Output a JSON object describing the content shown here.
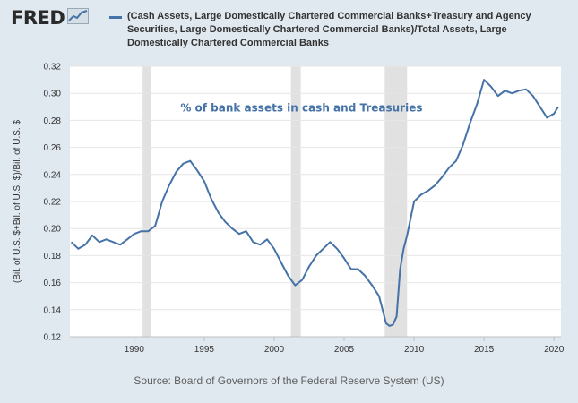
{
  "header": {
    "logo_text": "FRED",
    "legend_label": "(Cash Assets, Large Domestically Chartered Commercial Banks+Treasury and Agency Securities, Large Domestically Chartered Commercial Banks)/Total Assets, Large Domestically Chartered Commercial Banks"
  },
  "source": "Source: Board of Governors of the Federal Reserve System (US)",
  "colors": {
    "background": "#e1e9f0",
    "plot_background": "#ffffff",
    "line": "#4572a7",
    "recession": "#e1e1e1"
  },
  "chart_data": {
    "type": "line",
    "ylabel": "(Bil. of U.S. $+Bil. of U.S. $)/Bil. of U.S. $",
    "annotation": "% of bank assets in cash and Treasuries",
    "xlim": [
      1985.4,
      2020.5
    ],
    "ylim": [
      0.12,
      0.32
    ],
    "y_ticks": [
      "0.12",
      "0.14",
      "0.16",
      "0.18",
      "0.20",
      "0.22",
      "0.24",
      "0.26",
      "0.28",
      "0.30",
      "0.32"
    ],
    "x_ticks": [
      "1990",
      "1995",
      "2000",
      "2005",
      "2010",
      "2015",
      "2020"
    ],
    "grid": "horizontal",
    "recessions": [
      [
        1990.6,
        1991.2
      ],
      [
        2001.2,
        2001.9
      ],
      [
        2007.9,
        2009.5
      ]
    ],
    "series": [
      {
        "x": [
          1985.5,
          1986.0,
          1986.5,
          1987.0,
          1987.5,
          1988.0,
          1988.5,
          1989.0,
          1989.5,
          1990.0,
          1990.5,
          1991.0,
          1991.5,
          1992.0,
          1992.5,
          1993.0,
          1993.5,
          1994.0,
          1994.5,
          1995.0,
          1995.5,
          1996.0,
          1996.5,
          1997.0,
          1997.5,
          1998.0,
          1998.5,
          1999.0,
          1999.5,
          2000.0,
          2000.5,
          2001.0,
          2001.5,
          2002.0,
          2002.5,
          2003.0,
          2003.5,
          2004.0,
          2004.5,
          2005.0,
          2005.5,
          2006.0,
          2006.5,
          2007.0,
          2007.5,
          2008.0,
          2008.25,
          2008.5,
          2008.75,
          2009.0,
          2009.25,
          2009.5,
          2010.0,
          2010.5,
          2011.0,
          2011.5,
          2012.0,
          2012.5,
          2013.0,
          2013.5,
          2014.0,
          2014.5,
          2015.0,
          2015.5,
          2016.0,
          2016.5,
          2017.0,
          2017.5,
          2018.0,
          2018.5,
          2019.0,
          2019.5,
          2020.0,
          2020.3
        ],
        "y": [
          0.19,
          0.185,
          0.188,
          0.195,
          0.19,
          0.192,
          0.19,
          0.188,
          0.192,
          0.196,
          0.198,
          0.198,
          0.202,
          0.22,
          0.232,
          0.242,
          0.248,
          0.25,
          0.243,
          0.235,
          0.222,
          0.212,
          0.205,
          0.2,
          0.196,
          0.198,
          0.19,
          0.188,
          0.192,
          0.185,
          0.175,
          0.165,
          0.158,
          0.162,
          0.172,
          0.18,
          0.185,
          0.19,
          0.185,
          0.178,
          0.17,
          0.17,
          0.165,
          0.158,
          0.15,
          0.13,
          0.128,
          0.129,
          0.135,
          0.17,
          0.185,
          0.195,
          0.22,
          0.225,
          0.228,
          0.232,
          0.238,
          0.245,
          0.25,
          0.262,
          0.278,
          0.292,
          0.31,
          0.305,
          0.298,
          0.302,
          0.3,
          0.302,
          0.303,
          0.298,
          0.29,
          0.282,
          0.285,
          0.29
        ]
      }
    ]
  }
}
